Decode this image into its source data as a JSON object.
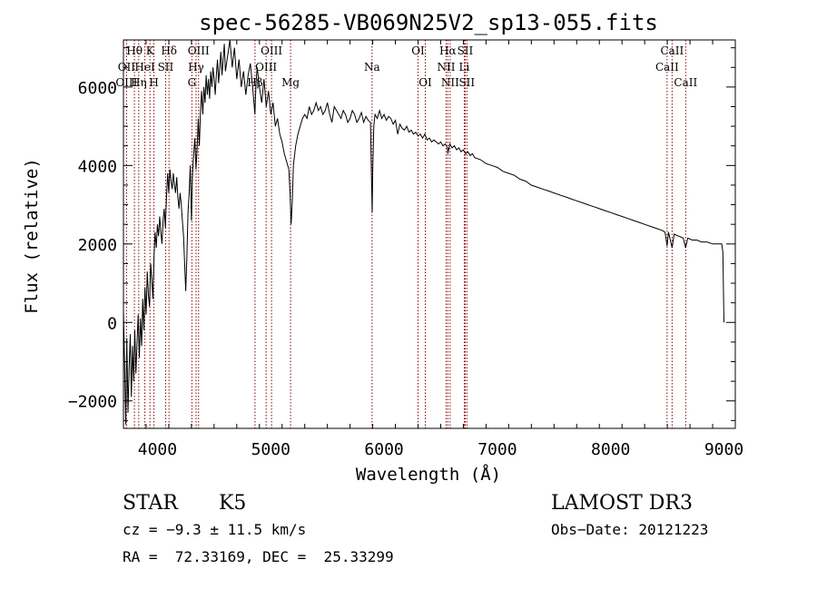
{
  "chart_data": {
    "type": "line",
    "title": "spec-56285-VB069N25V2_sp13-055.fits",
    "xlabel": "Wavelength (Å)",
    "ylabel": "Flux (relative)",
    "xlim": [
      3700,
      9100
    ],
    "ylim": [
      -2700,
      7200
    ],
    "x_ticks": [
      4000,
      5000,
      6000,
      7000,
      8000,
      9000
    ],
    "y_ticks": [
      -2000,
      0,
      2000,
      4000,
      6000
    ],
    "x_minor_step": 200,
    "y_minor_step": 500,
    "grid": false,
    "line_color": "#000000",
    "marker_color": "#8b0000",
    "series": [
      {
        "values": [
          [
            3700,
            300
          ],
          [
            3710,
            -1000
          ],
          [
            3720,
            -2600
          ],
          [
            3730,
            -400
          ],
          [
            3740,
            -2300
          ],
          [
            3750,
            -1200
          ],
          [
            3760,
            -300
          ],
          [
            3770,
            -1900
          ],
          [
            3780,
            -600
          ],
          [
            3790,
            -1500
          ],
          [
            3800,
            -200
          ],
          [
            3810,
            -1300
          ],
          [
            3820,
            -500
          ],
          [
            3830,
            200
          ],
          [
            3840,
            -900
          ],
          [
            3850,
            100
          ],
          [
            3860,
            -600
          ],
          [
            3870,
            600
          ],
          [
            3880,
            -200
          ],
          [
            3890,
            900
          ],
          [
            3900,
            200
          ],
          [
            3910,
            1300
          ],
          [
            3920,
            700
          ],
          [
            3930,
            400
          ],
          [
            3940,
            1500
          ],
          [
            3950,
            1100
          ],
          [
            3960,
            600
          ],
          [
            3970,
            1700
          ],
          [
            3980,
            2300
          ],
          [
            3990,
            1900
          ],
          [
            4000,
            2500
          ],
          [
            4010,
            2200
          ],
          [
            4020,
            2700
          ],
          [
            4030,
            2300
          ],
          [
            4040,
            2000
          ],
          [
            4050,
            2600
          ],
          [
            4060,
            2900
          ],
          [
            4070,
            2400
          ],
          [
            4080,
            3200
          ],
          [
            4090,
            3800
          ],
          [
            4100,
            3300
          ],
          [
            4110,
            3900
          ],
          [
            4120,
            3600
          ],
          [
            4130,
            3400
          ],
          [
            4140,
            3800
          ],
          [
            4150,
            3500
          ],
          [
            4160,
            3300
          ],
          [
            4170,
            3700
          ],
          [
            4180,
            3200
          ],
          [
            4190,
            2900
          ],
          [
            4200,
            3300
          ],
          [
            4210,
            3000
          ],
          [
            4220,
            2600
          ],
          [
            4230,
            2200
          ],
          [
            4240,
            1500
          ],
          [
            4250,
            800
          ],
          [
            4260,
            1700
          ],
          [
            4270,
            2800
          ],
          [
            4280,
            3300
          ],
          [
            4290,
            4000
          ],
          [
            4300,
            2600
          ],
          [
            4310,
            3800
          ],
          [
            4320,
            4300
          ],
          [
            4330,
            4700
          ],
          [
            4340,
            3900
          ],
          [
            4350,
            4400
          ],
          [
            4360,
            5200
          ],
          [
            4370,
            4500
          ],
          [
            4380,
            5400
          ],
          [
            4390,
            5900
          ],
          [
            4400,
            5300
          ],
          [
            4410,
            6000
          ],
          [
            4420,
            5600
          ],
          [
            4430,
            6300
          ],
          [
            4440,
            5800
          ],
          [
            4450,
            6200
          ],
          [
            4460,
            5700
          ],
          [
            4470,
            6400
          ],
          [
            4480,
            6000
          ],
          [
            4490,
            6500
          ],
          [
            4500,
            6200
          ],
          [
            4510,
            5800
          ],
          [
            4520,
            6300
          ],
          [
            4530,
            6700
          ],
          [
            4540,
            6100
          ],
          [
            4550,
            6500
          ],
          [
            4560,
            6900
          ],
          [
            4570,
            6300
          ],
          [
            4580,
            6700
          ],
          [
            4590,
            7100
          ],
          [
            4600,
            6400
          ],
          [
            4620,
            6800
          ],
          [
            4640,
            7200
          ],
          [
            4660,
            6500
          ],
          [
            4680,
            7000
          ],
          [
            4700,
            6200
          ],
          [
            4720,
            6700
          ],
          [
            4740,
            6000
          ],
          [
            4760,
            6400
          ],
          [
            4780,
            5800
          ],
          [
            4800,
            6300
          ],
          [
            4820,
            6600
          ],
          [
            4840,
            6000
          ],
          [
            4860,
            5300
          ],
          [
            4870,
            6100
          ],
          [
            4880,
            6500
          ],
          [
            4900,
            6000
          ],
          [
            4920,
            5600
          ],
          [
            4940,
            6200
          ],
          [
            4960,
            5500
          ],
          [
            4980,
            5900
          ],
          [
            5000,
            5300
          ],
          [
            5020,
            5600
          ],
          [
            5040,
            5000
          ],
          [
            5060,
            5200
          ],
          [
            5080,
            4800
          ],
          [
            5100,
            4600
          ],
          [
            5120,
            4300
          ],
          [
            5140,
            4100
          ],
          [
            5160,
            3900
          ],
          [
            5170,
            3300
          ],
          [
            5180,
            2500
          ],
          [
            5190,
            3100
          ],
          [
            5200,
            4000
          ],
          [
            5220,
            4500
          ],
          [
            5240,
            4800
          ],
          [
            5260,
            5000
          ],
          [
            5280,
            5200
          ],
          [
            5300,
            5300
          ],
          [
            5320,
            5200
          ],
          [
            5340,
            5500
          ],
          [
            5360,
            5300
          ],
          [
            5380,
            5400
          ],
          [
            5400,
            5600
          ],
          [
            5420,
            5400
          ],
          [
            5440,
            5500
          ],
          [
            5460,
            5300
          ],
          [
            5480,
            5400
          ],
          [
            5500,
            5600
          ],
          [
            5520,
            5300
          ],
          [
            5540,
            5100
          ],
          [
            5560,
            5500
          ],
          [
            5580,
            5400
          ],
          [
            5600,
            5300
          ],
          [
            5620,
            5200
          ],
          [
            5640,
            5400
          ],
          [
            5660,
            5300
          ],
          [
            5680,
            5100
          ],
          [
            5700,
            5200
          ],
          [
            5720,
            5400
          ],
          [
            5740,
            5300
          ],
          [
            5760,
            5100
          ],
          [
            5780,
            5200
          ],
          [
            5800,
            5350
          ],
          [
            5820,
            5100
          ],
          [
            5840,
            5250
          ],
          [
            5860,
            5150
          ],
          [
            5880,
            5100
          ],
          [
            5890,
            3600
          ],
          [
            5895,
            2800
          ],
          [
            5900,
            3900
          ],
          [
            5910,
            5000
          ],
          [
            5920,
            5300
          ],
          [
            5940,
            5200
          ],
          [
            5960,
            5400
          ],
          [
            5980,
            5200
          ],
          [
            6000,
            5300
          ],
          [
            6020,
            5150
          ],
          [
            6040,
            5250
          ],
          [
            6060,
            5200
          ],
          [
            6080,
            5050
          ],
          [
            6100,
            5150
          ],
          [
            6120,
            4800
          ],
          [
            6140,
            5050
          ],
          [
            6160,
            4950
          ],
          [
            6180,
            4900
          ],
          [
            6200,
            5000
          ],
          [
            6220,
            4850
          ],
          [
            6240,
            4900
          ],
          [
            6260,
            4800
          ],
          [
            6280,
            4850
          ],
          [
            6300,
            4750
          ],
          [
            6320,
            4800
          ],
          [
            6340,
            4700
          ],
          [
            6360,
            4800
          ],
          [
            6380,
            4650
          ],
          [
            6400,
            4700
          ],
          [
            6420,
            4600
          ],
          [
            6440,
            4650
          ],
          [
            6460,
            4600
          ],
          [
            6480,
            4550
          ],
          [
            6500,
            4600
          ],
          [
            6520,
            4500
          ],
          [
            6540,
            4550
          ],
          [
            6560,
            4450
          ],
          [
            6563,
            4300
          ],
          [
            6580,
            4550
          ],
          [
            6600,
            4450
          ],
          [
            6620,
            4500
          ],
          [
            6640,
            4400
          ],
          [
            6660,
            4450
          ],
          [
            6680,
            4350
          ],
          [
            6700,
            4400
          ],
          [
            6720,
            4300
          ],
          [
            6740,
            4350
          ],
          [
            6760,
            4250
          ],
          [
            6780,
            4300
          ],
          [
            6800,
            4200
          ],
          [
            6850,
            4150
          ],
          [
            6900,
            4050
          ],
          [
            6950,
            4000
          ],
          [
            7000,
            3950
          ],
          [
            7050,
            3850
          ],
          [
            7100,
            3800
          ],
          [
            7150,
            3750
          ],
          [
            7200,
            3650
          ],
          [
            7250,
            3600
          ],
          [
            7300,
            3500
          ],
          [
            7350,
            3450
          ],
          [
            7400,
            3400
          ],
          [
            7450,
            3350
          ],
          [
            7500,
            3300
          ],
          [
            7550,
            3250
          ],
          [
            7600,
            3200
          ],
          [
            7650,
            3150
          ],
          [
            7700,
            3100
          ],
          [
            7750,
            3050
          ],
          [
            7800,
            3000
          ],
          [
            7850,
            2950
          ],
          [
            7900,
            2900
          ],
          [
            7950,
            2850
          ],
          [
            8000,
            2800
          ],
          [
            8050,
            2750
          ],
          [
            8100,
            2700
          ],
          [
            8150,
            2650
          ],
          [
            8200,
            2600
          ],
          [
            8250,
            2550
          ],
          [
            8300,
            2500
          ],
          [
            8350,
            2450
          ],
          [
            8400,
            2400
          ],
          [
            8450,
            2350
          ],
          [
            8480,
            2300
          ],
          [
            8498,
            1950
          ],
          [
            8510,
            2300
          ],
          [
            8542,
            1900
          ],
          [
            8560,
            2250
          ],
          [
            8600,
            2200
          ],
          [
            8640,
            2150
          ],
          [
            8662,
            1900
          ],
          [
            8680,
            2150
          ],
          [
            8720,
            2100
          ],
          [
            8760,
            2100
          ],
          [
            8800,
            2050
          ],
          [
            8850,
            2050
          ],
          [
            8900,
            2000
          ],
          [
            8950,
            2000
          ],
          [
            8980,
            2000
          ],
          [
            8990,
            1800
          ],
          [
            9000,
            0
          ]
        ]
      }
    ],
    "line_markers": [
      {
        "label": "Hθ",
        "wavelength": 3797,
        "row": 0
      },
      {
        "label": "OII",
        "wavelength": 3727,
        "row": 1
      },
      {
        "label": "OIII",
        "wavelength": 3727,
        "row": 2
      },
      {
        "label": "HeI",
        "wavelength": 3889,
        "row": 1
      },
      {
        "label": "Hη",
        "wavelength": 3835,
        "row": 2
      },
      {
        "label": "K",
        "wavelength": 3934,
        "row": 0
      },
      {
        "label": "SII",
        "wavelength": 4072,
        "row": 1
      },
      {
        "label": "H",
        "wavelength": 3969,
        "row": 2
      },
      {
        "label": "Hδ",
        "wavelength": 4102,
        "row": 0
      },
      {
        "label": "OIII",
        "wavelength": 4363,
        "row": 0
      },
      {
        "label": "Hγ",
        "wavelength": 4341,
        "row": 1
      },
      {
        "label": "G",
        "wavelength": 4304,
        "row": 2
      },
      {
        "label": "OIII",
        "wavelength": 5007,
        "row": 0
      },
      {
        "label": "OIII",
        "wavelength": 4959,
        "row": 1
      },
      {
        "label": "Hβ",
        "wavelength": 4861,
        "row": 2
      },
      {
        "label": "Mg",
        "wavelength": 5175,
        "row": 2
      },
      {
        "label": "Na",
        "wavelength": 5894,
        "row": 1
      },
      {
        "label": "OI",
        "wavelength": 6300,
        "row": 0
      },
      {
        "label": "OI",
        "wavelength": 6364,
        "row": 2
      },
      {
        "label": "Hα",
        "wavelength": 6563,
        "row": 0
      },
      {
        "label": "SII",
        "wavelength": 6716,
        "row": 0
      },
      {
        "label": "NII",
        "wavelength": 6548,
        "row": 1
      },
      {
        "label": "Li",
        "wavelength": 6708,
        "row": 1
      },
      {
        "label": "NII",
        "wavelength": 6583,
        "row": 2
      },
      {
        "label": "SII",
        "wavelength": 6731,
        "row": 2
      },
      {
        "label": "CaII",
        "wavelength": 8542,
        "row": 0
      },
      {
        "label": "CaII",
        "wavelength": 8498,
        "row": 1
      },
      {
        "label": "CaII",
        "wavelength": 8662,
        "row": 2
      }
    ]
  },
  "info": {
    "object_class": "STAR",
    "subclass": "K5",
    "survey": "LAMOST DR3",
    "redshift": "cz = −9.3 ± 11.5 km/s",
    "obs_date": "Obs−Date: 20121223",
    "coords": "RA =  72.33169, DEC =  25.33299"
  }
}
